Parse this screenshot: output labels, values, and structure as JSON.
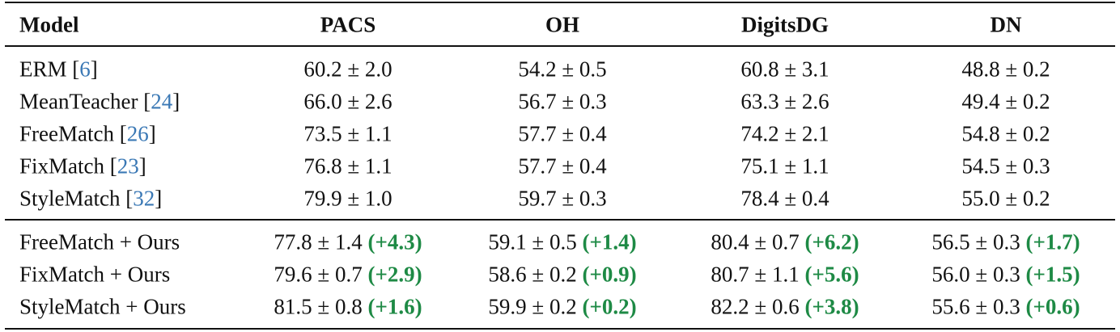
{
  "table": {
    "header": [
      "Model",
      "PACS",
      "OH",
      "DigitsDG",
      "DN"
    ],
    "brackets": [
      "[",
      "]"
    ],
    "groups": [
      [
        {
          "model": "ERM",
          "ref": "6",
          "cells": [
            {
              "value": "60.2 ± 2.0"
            },
            {
              "value": "54.2 ± 0.5"
            },
            {
              "value": "60.8 ± 3.1"
            },
            {
              "value": "48.8 ± 0.2"
            }
          ]
        },
        {
          "model": "MeanTeacher",
          "ref": "24",
          "cells": [
            {
              "value": "66.0 ± 2.6"
            },
            {
              "value": "56.7 ± 0.3"
            },
            {
              "value": "63.3 ± 2.6"
            },
            {
              "value": "49.4 ± 0.2"
            }
          ]
        },
        {
          "model": "FreeMatch",
          "ref": "26",
          "cells": [
            {
              "value": "73.5 ± 1.1"
            },
            {
              "value": "57.7 ± 0.4"
            },
            {
              "value": "74.2 ± 2.1"
            },
            {
              "value": "54.8 ± 0.2"
            }
          ]
        },
        {
          "model": "FixMatch",
          "ref": "23",
          "cells": [
            {
              "value": "76.8 ± 1.1"
            },
            {
              "value": "57.7 ± 0.4"
            },
            {
              "value": "75.1 ± 1.1"
            },
            {
              "value": "54.5 ± 0.3"
            }
          ]
        },
        {
          "model": "StyleMatch",
          "ref": "32",
          "cells": [
            {
              "value": "79.9 ± 1.0"
            },
            {
              "value": "59.7 ± 0.3"
            },
            {
              "value": "78.4 ± 0.4"
            },
            {
              "value": "55.0 ± 0.2"
            }
          ]
        }
      ],
      [
        {
          "model": "FreeMatch + Ours",
          "cells": [
            {
              "value": "77.8 ± 1.4",
              "gain": "(+4.3)"
            },
            {
              "value": "59.1 ± 0.5",
              "gain": "(+1.4)"
            },
            {
              "value": "80.4 ± 0.7",
              "gain": "(+6.2)"
            },
            {
              "value": "56.5 ± 0.3",
              "gain": "(+1.7)"
            }
          ]
        },
        {
          "model": "FixMatch + Ours",
          "cells": [
            {
              "value": "79.6 ± 0.7",
              "gain": "(+2.9)"
            },
            {
              "value": "58.6 ± 0.2",
              "gain": "(+0.9)"
            },
            {
              "value": "80.7 ± 1.1",
              "gain": "(+5.6)"
            },
            {
              "value": "56.0 ± 0.3",
              "gain": "(+1.5)"
            }
          ]
        },
        {
          "model": "StyleMatch + Ours",
          "cells": [
            {
              "value": "81.5 ± 0.8",
              "gain": "(+1.6)"
            },
            {
              "value": "59.9 ± 0.2",
              "gain": "(+0.2)"
            },
            {
              "value": "82.2 ± 0.6",
              "gain": "(+3.8)"
            },
            {
              "value": "55.6 ± 0.3",
              "gain": "(+0.6)"
            }
          ]
        }
      ]
    ]
  }
}
